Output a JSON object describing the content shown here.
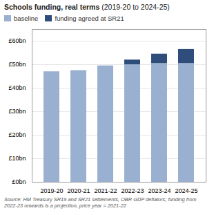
{
  "chart_data": {
    "type": "bar",
    "stacked": true,
    "title": "Schools funding, real terms",
    "subtitle": "(2019-20 to 2024-25)",
    "caption": "Source: HM Treasury SR19 and SR21 settlements, OBR GDP deflators; funding from\n2022-23 onwards is a projection, price year = 2021-22",
    "categories": [
      "2019-20",
      "2020-21",
      "2021-22",
      "2022-23",
      "2023-24",
      "2024-25"
    ],
    "series": [
      {
        "name": "baseline",
        "color": "#9ab0d0",
        "values": [
          47.0,
          47.5,
          49.5,
          50.0,
          50.5,
          50.5
        ]
      },
      {
        "name": "funding agreed at SR21",
        "color": "#2e4d7b",
        "values": [
          0,
          0,
          0,
          2.0,
          4.0,
          6.0
        ]
      }
    ],
    "ylim": [
      0,
      65
    ],
    "yticks": [
      {
        "value": 0,
        "label": "£0bn"
      },
      {
        "value": 10,
        "label": "£10bn"
      },
      {
        "value": 20,
        "label": "£20bn"
      },
      {
        "value": 30,
        "label": "£30bn"
      },
      {
        "value": 40,
        "label": "£40bn"
      },
      {
        "value": 50,
        "label": "£50bn"
      },
      {
        "value": 60,
        "label": "£60bn"
      }
    ],
    "grid": true,
    "legend": "upper left"
  }
}
